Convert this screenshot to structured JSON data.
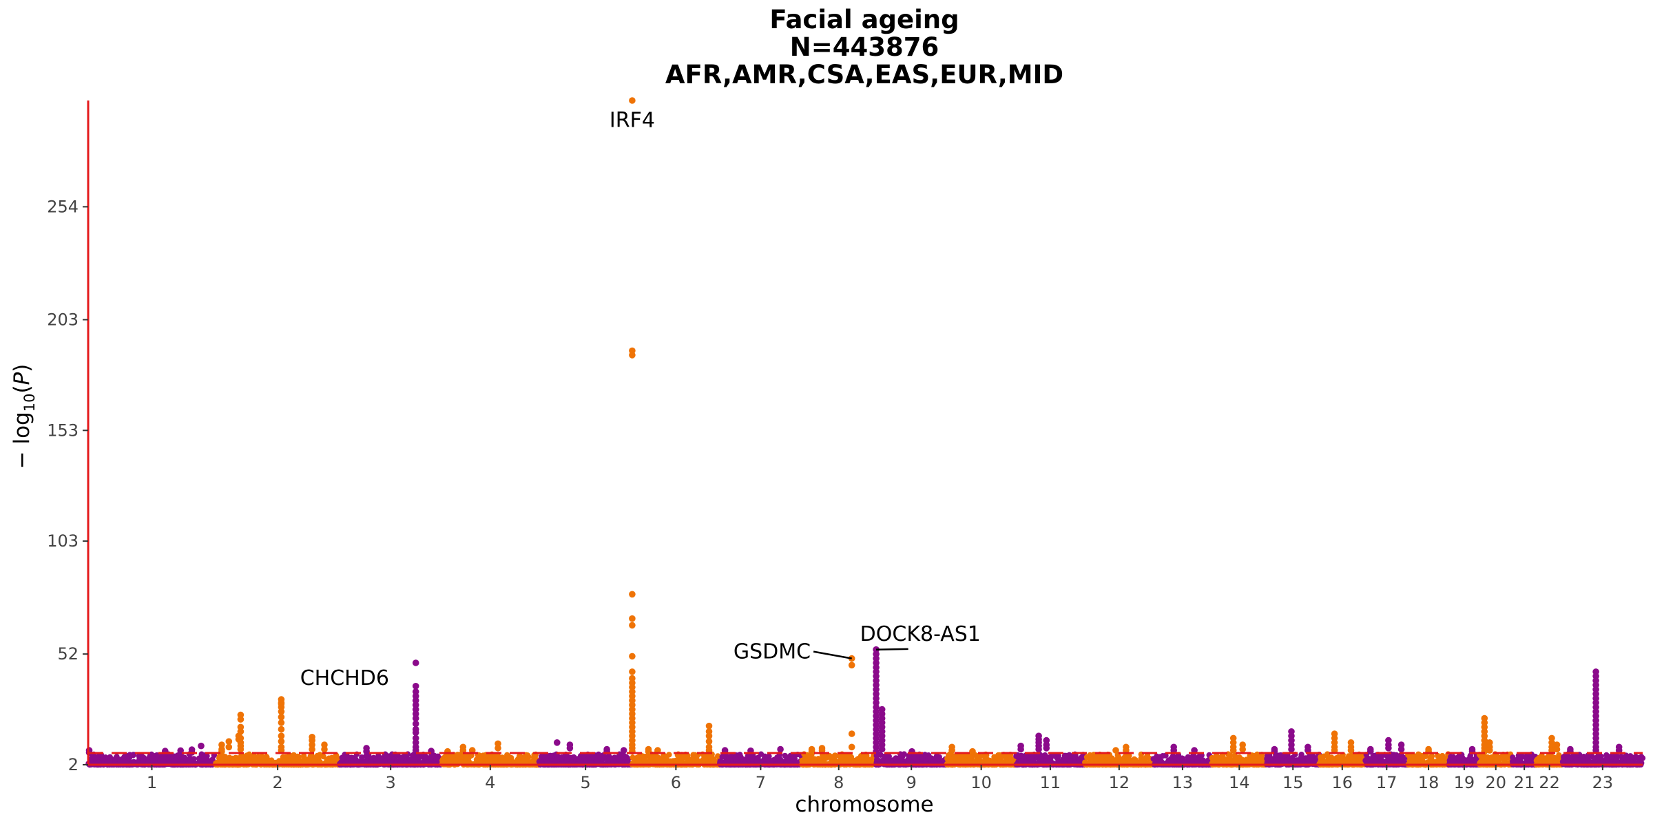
{
  "chart_data": {
    "type": "scatter",
    "subtype": "manhattan",
    "title_lines": [
      "Facial ageing",
      "N=443876",
      "AFR,AMR,CSA,EAS,EUR,MID"
    ],
    "xlabel": "chromosome",
    "ylabel": "−log10(P)",
    "y_ticks": [
      2,
      52,
      103,
      153,
      203,
      254
    ],
    "ylim": [
      2,
      302
    ],
    "significance_threshold": 7.3,
    "threshold_color": "#e41a1c",
    "axis_color": "#e41a1c",
    "colors": {
      "odd": "#8b0a8b",
      "even": "#ef7306"
    },
    "grid": false,
    "legend": "none",
    "chromosomes": [
      {
        "chr": "1",
        "label": "1",
        "start": 0,
        "end": 248
      },
      {
        "chr": "2",
        "label": "2",
        "start": 248,
        "end": 490
      },
      {
        "chr": "3",
        "label": "3",
        "start": 490,
        "end": 688
      },
      {
        "chr": "4",
        "label": "4",
        "start": 688,
        "end": 878
      },
      {
        "chr": "5",
        "label": "5",
        "start": 878,
        "end": 1059
      },
      {
        "chr": "6",
        "label": "6",
        "start": 1059,
        "end": 1230
      },
      {
        "chr": "7",
        "label": "7",
        "start": 1230,
        "end": 1389
      },
      {
        "chr": "8",
        "label": "8",
        "start": 1389,
        "end": 1534
      },
      {
        "chr": "9",
        "label": "9",
        "start": 1534,
        "end": 1672
      },
      {
        "chr": "10",
        "label": "10",
        "start": 1672,
        "end": 1806
      },
      {
        "chr": "11",
        "label": "11",
        "start": 1806,
        "end": 1941
      },
      {
        "chr": "12",
        "label": "12",
        "start": 1941,
        "end": 2074
      },
      {
        "chr": "13",
        "label": "13",
        "start": 2074,
        "end": 2188
      },
      {
        "chr": "14",
        "label": "14",
        "start": 2188,
        "end": 2295
      },
      {
        "chr": "15",
        "label": "15",
        "start": 2295,
        "end": 2397
      },
      {
        "chr": "16",
        "label": "16",
        "start": 2397,
        "end": 2487
      },
      {
        "chr": "17",
        "label": "17",
        "start": 2487,
        "end": 2570
      },
      {
        "chr": "18",
        "label": "18",
        "start": 2570,
        "end": 2650
      },
      {
        "chr": "19",
        "label": "19",
        "start": 2650,
        "end": 2709
      },
      {
        "chr": "20",
        "label": "20",
        "start": 2709,
        "end": 2773
      },
      {
        "chr": "21",
        "label": "21",
        "start": 2773,
        "end": 2820
      },
      {
        "chr": "22",
        "label": "22",
        "start": 2820,
        "end": 2871
      },
      {
        "chr": "23",
        "label": "23",
        "start": 2871,
        "end": 3027
      }
    ],
    "peaks": [
      {
        "chr": "1",
        "pos": 2,
        "values": [
          8.5,
          7.5
        ]
      },
      {
        "chr": "1",
        "pos": 150,
        "values": [
          8.2,
          7.0
        ]
      },
      {
        "chr": "1",
        "pos": 180,
        "values": [
          8.4,
          7.2
        ]
      },
      {
        "chr": "1",
        "pos": 202,
        "values": [
          8.8,
          7.6
        ]
      },
      {
        "chr": "1",
        "pos": 220,
        "values": [
          10.5
        ]
      },
      {
        "chr": "2",
        "pos": 12,
        "values": [
          11.0,
          9.0,
          8.0
        ]
      },
      {
        "chr": "2",
        "pos": 26,
        "values": [
          12.5,
          10.0
        ]
      },
      {
        "chr": "2",
        "pos": 45,
        "values": [
          15.0,
          13.5
        ]
      },
      {
        "chr": "2",
        "pos": 49,
        "values": [
          19.0,
          22.5,
          24.5,
          17.0,
          14.0,
          12.0,
          10.5,
          9.0
        ]
      },
      {
        "chr": "2",
        "pos": 128,
        "values": [
          28.0,
          29.5,
          31.5,
          30.0,
          26.0,
          23.5,
          21.0,
          18.0,
          15.0,
          12.5,
          10.0,
          8.5
        ]
      },
      {
        "chr": "2",
        "pos": 188,
        "values": [
          14.5,
          13.0,
          11.0,
          9.0
        ]
      },
      {
        "chr": "2",
        "pos": 212,
        "values": [
          11.0,
          9.0
        ]
      },
      {
        "chr": "3",
        "pos": 52,
        "values": [
          9.5,
          8.0
        ]
      },
      {
        "chr": "3",
        "pos": 148,
        "values": [
          48.0,
          37.5,
          35.0,
          33.0,
          31.0,
          29.0,
          27.0,
          25.0,
          23.0,
          20.5,
          18.0,
          16.5,
          14.0,
          12.0,
          10.0,
          8.5
        ]
      },
      {
        "chr": "3",
        "pos": 178,
        "values": [
          8.2,
          7.5
        ]
      },
      {
        "chr": "4",
        "pos": 12,
        "values": [
          8.0,
          7.0
        ]
      },
      {
        "chr": "4",
        "pos": 42,
        "values": [
          10.0,
          8.5
        ]
      },
      {
        "chr": "4",
        "pos": 60,
        "values": [
          8.5
        ]
      },
      {
        "chr": "4",
        "pos": 110,
        "values": [
          11.5,
          9.5
        ]
      },
      {
        "chr": "5",
        "pos": 35,
        "values": [
          12.0
        ]
      },
      {
        "chr": "5",
        "pos": 60,
        "values": [
          11.0,
          9.5
        ]
      },
      {
        "chr": "5",
        "pos": 132,
        "values": [
          9.0,
          8.0
        ]
      },
      {
        "chr": "5",
        "pos": 165,
        "values": [
          8.5
        ]
      },
      {
        "chr": "6",
        "pos": 0.4,
        "values": [
          302.0,
          189.0,
          187.0,
          79.0,
          68.0,
          65.0,
          51.0,
          44.0,
          41.0,
          39.0,
          37.0,
          35.0,
          33.0,
          31.0,
          29.0,
          27.0,
          25.0,
          23.0,
          21.0,
          19.0,
          17.0,
          15.0,
          13.0,
          11.0,
          9.5,
          8.0
        ]
      },
      {
        "chr": "6",
        "pos": 32,
        "values": [
          9.0,
          8.0
        ]
      },
      {
        "chr": "6",
        "pos": 50,
        "values": [
          8.5
        ]
      },
      {
        "chr": "6",
        "pos": 150,
        "values": [
          19.5,
          17.0,
          15.0,
          12.5,
          10.0,
          8.5
        ]
      },
      {
        "chr": "7",
        "pos": 10,
        "values": [
          8.5,
          7.5
        ]
      },
      {
        "chr": "7",
        "pos": 60,
        "values": [
          8.3
        ]
      },
      {
        "chr": "7",
        "pos": 118,
        "values": [
          9.0
        ]
      },
      {
        "chr": "8",
        "pos": 20,
        "values": [
          9.0,
          8.0
        ]
      },
      {
        "chr": "8",
        "pos": 40,
        "values": [
          9.5,
          8.5
        ]
      },
      {
        "chr": "8",
        "pos": 98,
        "values": [
          50.0,
          47.0,
          16.0,
          10.0
        ]
      },
      {
        "chr": "9",
        "pos": 0.4,
        "values": [
          54.0,
          52.0,
          50.0,
          48.0,
          46.0,
          44.0,
          42.0,
          40.0,
          38.0,
          36.0,
          34.0,
          32.0,
          30.0,
          28.0,
          26.0,
          24.0,
          22.0,
          20.0,
          18.0,
          16.0,
          14.0,
          12.0,
          10.0,
          8.0
        ]
      },
      {
        "chr": "9",
        "pos": 12,
        "values": [
          27.0,
          25.0,
          23.0,
          21.0,
          19.0,
          17.0,
          15.0,
          13.0,
          11.0,
          9.0
        ]
      },
      {
        "chr": "9",
        "pos": 70,
        "values": [
          8.0
        ]
      },
      {
        "chr": "10",
        "pos": 10,
        "values": [
          10.0,
          8.5
        ]
      },
      {
        "chr": "10",
        "pos": 50,
        "values": [
          8.0
        ]
      },
      {
        "chr": "11",
        "pos": 10,
        "values": [
          10.5,
          9.0
        ]
      },
      {
        "chr": "11",
        "pos": 45,
        "values": [
          15.0,
          13.5,
          12.0,
          10.5,
          9.0
        ]
      },
      {
        "chr": "11",
        "pos": 60,
        "values": [
          13.0,
          11.0,
          9.5
        ]
      },
      {
        "chr": "12",
        "pos": 60,
        "values": [
          8.5
        ]
      },
      {
        "chr": "12",
        "pos": 80,
        "values": [
          10.0,
          8.5
        ]
      },
      {
        "chr": "13",
        "pos": 40,
        "values": [
          10.0,
          8.5
        ]
      },
      {
        "chr": "13",
        "pos": 80,
        "values": [
          8.5
        ]
      },
      {
        "chr": "14",
        "pos": 42,
        "values": [
          14.0,
          12.0,
          10.0,
          8.5
        ]
      },
      {
        "chr": "14",
        "pos": 60,
        "values": [
          11.0,
          9.0
        ]
      },
      {
        "chr": "15",
        "pos": 15,
        "values": [
          9.0,
          8.0
        ]
      },
      {
        "chr": "15",
        "pos": 48,
        "values": [
          17.0,
          15.0,
          13.0,
          11.0,
          9.0
        ]
      },
      {
        "chr": "15",
        "pos": 80,
        "values": [
          10.0,
          8.5
        ]
      },
      {
        "chr": "16",
        "pos": 30,
        "values": [
          16.0,
          14.0,
          12.0,
          10.0,
          8.5
        ]
      },
      {
        "chr": "16",
        "pos": 62,
        "values": [
          12.0,
          10.0,
          8.5
        ]
      },
      {
        "chr": "17",
        "pos": 10,
        "values": [
          9.0,
          8.0
        ]
      },
      {
        "chr": "17",
        "pos": 45,
        "values": [
          13.0,
          11.0,
          9.5
        ]
      },
      {
        "chr": "17",
        "pos": 70,
        "values": [
          11.0,
          9.0
        ]
      },
      {
        "chr": "18",
        "pos": 40,
        "values": [
          9.0,
          8.0
        ]
      },
      {
        "chr": "19",
        "pos": 45,
        "values": [
          9.0,
          8.0
        ]
      },
      {
        "chr": "20",
        "pos": 10,
        "values": [
          23.0,
          21.0,
          19.0,
          17.0,
          15.0,
          13.0,
          11.0,
          9.5,
          8.0
        ]
      },
      {
        "chr": "20",
        "pos": 20,
        "values": [
          12.0,
          10.0,
          8.5
        ]
      },
      {
        "chr": "22",
        "pos": 30,
        "values": [
          14.0,
          12.0,
          10.0,
          8.5
        ]
      },
      {
        "chr": "22",
        "pos": 40,
        "values": [
          11.0,
          9.0
        ]
      },
      {
        "chr": "23",
        "pos": 15,
        "values": [
          9.0,
          8.0
        ]
      },
      {
        "chr": "23",
        "pos": 65,
        "values": [
          44.0,
          42.0,
          40.0,
          38.0,
          36.0,
          34.0,
          32.0,
          30.0,
          28.0,
          26.0,
          24.0,
          22.0,
          20.0,
          18.0,
          16.0,
          14.0,
          12.0,
          10.0,
          8.5
        ]
      },
      {
        "chr": "23",
        "pos": 110,
        "values": [
          10.0,
          8.5
        ]
      }
    ],
    "annotations": [
      {
        "label": "IRF4",
        "chr": "6",
        "pos": 0.4,
        "value": 302.0,
        "text_anchor": "middle",
        "text_value": 290,
        "text_pos_chr": "6",
        "text_pos": 0.4,
        "leader": false
      },
      {
        "label": "CHCHD6",
        "chr": "3",
        "pos": 148,
        "value": 48.0,
        "text_anchor": "end",
        "text_value": 38,
        "text_pos_chr": "3",
        "text_pos": 96,
        "leader": false
      },
      {
        "label": "GSDMC",
        "chr": "8",
        "pos": 98,
        "value": 50.0,
        "text_anchor": "end",
        "text_value": 50,
        "text_pos_chr": "8",
        "text_pos": 18,
        "leader": true
      },
      {
        "label": "DOCK8-AS1",
        "chr": "9",
        "pos": 0.4,
        "value": 54.0,
        "text_anchor": "start",
        "text_value": 58,
        "text_pos_chr": "8",
        "text_pos": 114,
        "leader": true
      }
    ]
  }
}
